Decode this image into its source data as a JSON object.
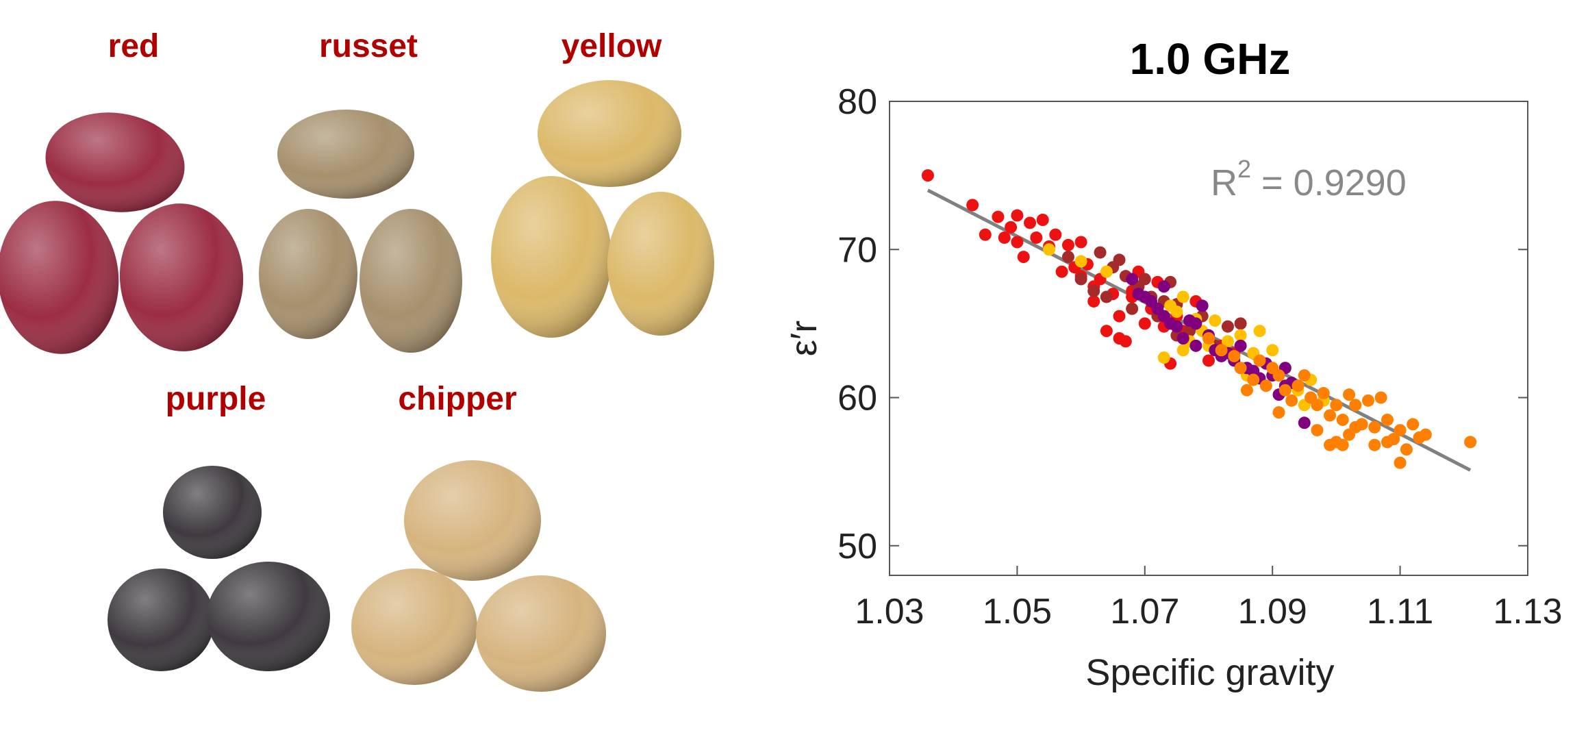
{
  "potatoes": [
    {
      "label": "red",
      "color": "#9b2d43"
    },
    {
      "label": "russet",
      "color": "#a6906d"
    },
    {
      "label": "yellow",
      "color": "#dcb96a"
    },
    {
      "label": "purple",
      "color": "#3e3a3f"
    },
    {
      "label": "chipper",
      "color": "#d6b47f"
    }
  ],
  "label_color": "#b00000",
  "chart_data": {
    "type": "scatter",
    "title": "1.0 GHz",
    "xlabel": "Specific gravity",
    "ylabel": "ε′r",
    "xlim": [
      1.03,
      1.13
    ],
    "ylim": [
      48,
      80
    ],
    "xticks": [
      "1.03",
      "1.05",
      "1.07",
      "1.09",
      "1.11",
      "1.13"
    ],
    "yticks": [
      "50",
      "60",
      "70",
      "80"
    ],
    "annotation": {
      "text_base": "R",
      "superscript": "2",
      "text_rest": " = 0.9290"
    },
    "fit_line": {
      "x": [
        1.036,
        1.121
      ],
      "y": [
        74.0,
        55.1
      ],
      "color": "#808080"
    },
    "grid": false,
    "series": [
      {
        "color": "#ee1111",
        "points": [
          [
            1.036,
            75.0
          ],
          [
            1.043,
            73.0
          ],
          [
            1.045,
            71.0
          ],
          [
            1.047,
            72.2
          ],
          [
            1.048,
            70.8
          ],
          [
            1.049,
            71.5
          ],
          [
            1.05,
            72.3
          ],
          [
            1.05,
            70.5
          ],
          [
            1.051,
            69.5
          ],
          [
            1.052,
            71.8
          ],
          [
            1.053,
            70.8
          ],
          [
            1.054,
            72.0
          ],
          [
            1.055,
            70.2
          ],
          [
            1.056,
            71.0
          ],
          [
            1.057,
            68.5
          ],
          [
            1.058,
            70.3
          ],
          [
            1.059,
            68.8
          ],
          [
            1.06,
            70.5
          ],
          [
            1.061,
            69.0
          ],
          [
            1.062,
            67.5
          ],
          [
            1.062,
            66.5
          ],
          [
            1.063,
            68.0
          ],
          [
            1.064,
            64.5
          ],
          [
            1.065,
            67.0
          ],
          [
            1.066,
            65.5
          ],
          [
            1.067,
            63.8
          ],
          [
            1.068,
            66.8
          ],
          [
            1.069,
            68.5
          ],
          [
            1.07,
            65.0
          ],
          [
            1.071,
            66.0
          ],
          [
            1.072,
            67.8
          ],
          [
            1.073,
            64.8
          ],
          [
            1.074,
            62.3
          ],
          [
            1.075,
            65.5
          ],
          [
            1.076,
            64.5
          ],
          [
            1.078,
            66.5
          ],
          [
            1.08,
            62.5
          ],
          [
            1.082,
            63.5
          ],
          [
            1.084,
            63.0
          ],
          [
            1.06,
            68.2
          ],
          [
            1.068,
            67.2
          ],
          [
            1.072,
            65.8
          ],
          [
            1.066,
            64.0
          ]
        ]
      },
      {
        "color": "#a52a2a",
        "points": [
          [
            1.058,
            69.5
          ],
          [
            1.06,
            68.0
          ],
          [
            1.062,
            67.2
          ],
          [
            1.063,
            69.8
          ],
          [
            1.065,
            68.8
          ],
          [
            1.066,
            69.3
          ],
          [
            1.067,
            68.2
          ],
          [
            1.068,
            66.0
          ],
          [
            1.069,
            67.5
          ],
          [
            1.07,
            68.0
          ],
          [
            1.071,
            66.8
          ],
          [
            1.072,
            65.5
          ],
          [
            1.073,
            66.5
          ],
          [
            1.074,
            67.8
          ],
          [
            1.075,
            66.3
          ],
          [
            1.077,
            64.5
          ],
          [
            1.079,
            65.5
          ],
          [
            1.081,
            63.5
          ],
          [
            1.083,
            64.8
          ],
          [
            1.085,
            65.0
          ],
          [
            1.075,
            64.2
          ],
          [
            1.064,
            66.8
          ]
        ]
      },
      {
        "color": "#ffc000",
        "points": [
          [
            1.055,
            70.0
          ],
          [
            1.06,
            69.2
          ],
          [
            1.064,
            68.5
          ],
          [
            1.073,
            62.7
          ],
          [
            1.074,
            66.2
          ],
          [
            1.075,
            65.8
          ],
          [
            1.076,
            66.8
          ],
          [
            1.077,
            63.8
          ],
          [
            1.079,
            64.5
          ],
          [
            1.081,
            65.2
          ],
          [
            1.083,
            63.8
          ],
          [
            1.085,
            64.2
          ],
          [
            1.087,
            63.0
          ],
          [
            1.088,
            62.5
          ],
          [
            1.088,
            64.5
          ],
          [
            1.09,
            63.2
          ],
          [
            1.092,
            62.0
          ],
          [
            1.094,
            60.5
          ],
          [
            1.096,
            61.2
          ],
          [
            1.098,
            59.8
          ],
          [
            1.095,
            59.5
          ],
          [
            1.086,
            61.5
          ],
          [
            1.078,
            65.3
          ],
          [
            1.08,
            63.5
          ],
          [
            1.076,
            63.2
          ]
        ]
      },
      {
        "color": "#800080",
        "points": [
          [
            1.068,
            68.0
          ],
          [
            1.069,
            67.0
          ],
          [
            1.07,
            66.8
          ],
          [
            1.071,
            66.5
          ],
          [
            1.072,
            66.0
          ],
          [
            1.073,
            65.5
          ],
          [
            1.074,
            65.0
          ],
          [
            1.075,
            64.8
          ],
          [
            1.076,
            64.0
          ],
          [
            1.077,
            65.2
          ],
          [
            1.078,
            63.5
          ],
          [
            1.078,
            65.0
          ],
          [
            1.079,
            66.2
          ],
          [
            1.08,
            64.2
          ],
          [
            1.081,
            63.2
          ],
          [
            1.082,
            62.8
          ],
          [
            1.083,
            63.0
          ],
          [
            1.084,
            62.5
          ],
          [
            1.085,
            63.5
          ],
          [
            1.086,
            62.0
          ],
          [
            1.087,
            61.8
          ],
          [
            1.088,
            61.3
          ],
          [
            1.089,
            62.3
          ],
          [
            1.09,
            61.5
          ],
          [
            1.091,
            60.2
          ],
          [
            1.092,
            62.0
          ],
          [
            1.093,
            61.0
          ],
          [
            1.095,
            58.3
          ],
          [
            1.092,
            60.8
          ],
          [
            1.073,
            67.5
          ]
        ]
      },
      {
        "color": "#ff8000",
        "points": [
          [
            1.08,
            64.0
          ],
          [
            1.082,
            63.2
          ],
          [
            1.084,
            62.8
          ],
          [
            1.085,
            62.0
          ],
          [
            1.086,
            60.5
          ],
          [
            1.087,
            61.2
          ],
          [
            1.088,
            62.5
          ],
          [
            1.089,
            60.8
          ],
          [
            1.09,
            62.0
          ],
          [
            1.091,
            61.5
          ],
          [
            1.092,
            60.5
          ],
          [
            1.093,
            59.8
          ],
          [
            1.094,
            60.8
          ],
          [
            1.095,
            61.5
          ],
          [
            1.096,
            60.0
          ],
          [
            1.097,
            59.5
          ],
          [
            1.098,
            60.3
          ],
          [
            1.099,
            58.8
          ],
          [
            1.1,
            59.5
          ],
          [
            1.1,
            57.0
          ],
          [
            1.101,
            58.5
          ],
          [
            1.101,
            56.8
          ],
          [
            1.102,
            57.5
          ],
          [
            1.102,
            60.2
          ],
          [
            1.103,
            59.5
          ],
          [
            1.104,
            58.2
          ],
          [
            1.105,
            59.8
          ],
          [
            1.106,
            58.0
          ],
          [
            1.106,
            56.8
          ],
          [
            1.107,
            60.0
          ],
          [
            1.108,
            57.0
          ],
          [
            1.108,
            58.5
          ],
          [
            1.109,
            57.2
          ],
          [
            1.11,
            55.6
          ],
          [
            1.11,
            57.8
          ],
          [
            1.111,
            56.5
          ],
          [
            1.112,
            58.2
          ],
          [
            1.113,
            57.3
          ],
          [
            1.114,
            57.5
          ],
          [
            1.121,
            57.0
          ],
          [
            1.097,
            57.8
          ],
          [
            1.099,
            56.8
          ],
          [
            1.103,
            58.0
          ],
          [
            1.091,
            59.0
          ]
        ]
      }
    ]
  }
}
